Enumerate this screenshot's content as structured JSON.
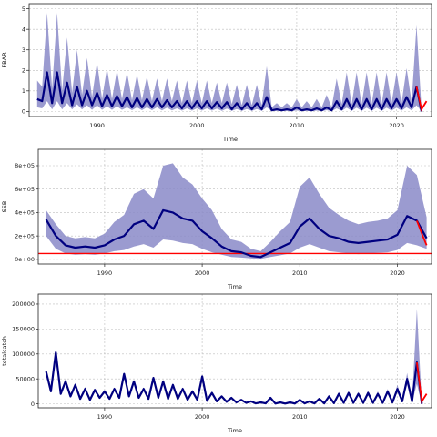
{
  "chart_data": [
    {
      "type": "line",
      "title": "",
      "xlabel": "Time",
      "ylabel": "FBAR",
      "xlim": [
        1983.2,
        2023.5
      ],
      "ylim": [
        -0.25,
        5.25
      ],
      "xticks": [
        "1990",
        "2000",
        "2010",
        "2020"
      ],
      "yticks": [
        "0",
        "1",
        "2",
        "3",
        "4",
        "5"
      ],
      "ytick_values": [
        0,
        1,
        2,
        3,
        4,
        5
      ],
      "grid": true,
      "series": [
        {
          "name": "",
          "role": "median",
          "color": "#000080",
          "x": [
            1984.0,
            1984.5,
            1985.0,
            1985.5,
            1986.0,
            1986.5,
            1987.0,
            1987.5,
            1988.0,
            1988.5,
            1989.0,
            1989.5,
            1990.0,
            1990.5,
            1991.0,
            1991.5,
            1992.0,
            1992.5,
            1993.0,
            1993.5,
            1994.0,
            1994.5,
            1995.0,
            1995.5,
            1996.0,
            1996.5,
            1997.0,
            1997.5,
            1998.0,
            1998.5,
            1999.0,
            1999.5,
            2000.0,
            2000.5,
            2001.0,
            2001.5,
            2002.0,
            2002.5,
            2003.0,
            2003.5,
            2004.0,
            2004.5,
            2005.0,
            2005.5,
            2006.0,
            2006.5,
            2007.0,
            2007.5,
            2008.0,
            2008.5,
            2009.0,
            2009.5,
            2010.0,
            2010.5,
            2011.0,
            2011.5,
            2012.0,
            2012.5,
            2013.0,
            2013.5,
            2014.0,
            2014.5,
            2015.0,
            2015.5,
            2016.0,
            2016.5,
            2017.0,
            2017.5,
            2018.0,
            2018.5,
            2019.0,
            2019.5,
            2020.0,
            2020.5,
            2021.0,
            2021.5,
            2022.0,
            2022.5
          ],
          "values": [
            0.6,
            0.5,
            1.9,
            0.4,
            1.9,
            0.4,
            1.4,
            0.3,
            1.2,
            0.3,
            1.0,
            0.3,
            0.9,
            0.25,
            0.8,
            0.25,
            0.75,
            0.25,
            0.7,
            0.2,
            0.65,
            0.2,
            0.6,
            0.2,
            0.6,
            0.2,
            0.55,
            0.2,
            0.5,
            0.15,
            0.5,
            0.15,
            0.5,
            0.15,
            0.5,
            0.15,
            0.45,
            0.15,
            0.45,
            0.1,
            0.4,
            0.1,
            0.4,
            0.1,
            0.4,
            0.1,
            0.7,
            0.05,
            0.1,
            0.05,
            0.1,
            0.05,
            0.2,
            0.05,
            0.1,
            0.05,
            0.15,
            0.05,
            0.2,
            0.05,
            0.5,
            0.1,
            0.6,
            0.1,
            0.6,
            0.1,
            0.6,
            0.1,
            0.6,
            0.1,
            0.6,
            0.15,
            0.6,
            0.15,
            0.7,
            0.2,
            1.2,
            0.0
          ]
        },
        {
          "name": "",
          "role": "upper",
          "color": "#8a8ac8",
          "values": [
            1.5,
            1.2,
            4.8,
            1.1,
            4.8,
            1.0,
            3.6,
            0.9,
            3.0,
            0.8,
            2.6,
            0.7,
            2.4,
            0.6,
            2.1,
            0.6,
            2.0,
            0.6,
            1.9,
            0.55,
            1.8,
            0.55,
            1.7,
            0.5,
            1.6,
            0.5,
            1.6,
            0.5,
            1.5,
            0.4,
            1.5,
            0.4,
            1.5,
            0.4,
            1.5,
            0.4,
            1.4,
            0.4,
            1.4,
            0.35,
            1.3,
            0.3,
            1.3,
            0.3,
            1.3,
            0.3,
            2.2,
            0.2,
            0.4,
            0.2,
            0.4,
            0.2,
            0.6,
            0.2,
            0.5,
            0.2,
            0.6,
            0.2,
            0.8,
            0.2,
            1.6,
            0.35,
            1.9,
            0.35,
            1.9,
            0.35,
            1.9,
            0.35,
            1.9,
            0.35,
            1.9,
            0.4,
            1.9,
            0.4,
            2.1,
            0.45,
            4.2,
            0.1
          ]
        },
        {
          "name": "",
          "role": "lower",
          "color": "#8a8ac8",
          "values": [
            0.2,
            0.15,
            0.5,
            0.1,
            0.5,
            0.1,
            0.4,
            0.1,
            0.35,
            0.1,
            0.3,
            0.08,
            0.3,
            0.08,
            0.25,
            0.08,
            0.25,
            0.08,
            0.2,
            0.06,
            0.2,
            0.06,
            0.2,
            0.06,
            0.2,
            0.05,
            0.18,
            0.05,
            0.15,
            0.04,
            0.15,
            0.04,
            0.15,
            0.04,
            0.15,
            0.04,
            0.14,
            0.03,
            0.14,
            0.03,
            0.12,
            0.03,
            0.12,
            0.03,
            0.12,
            0.03,
            0.2,
            0.01,
            0.03,
            0.01,
            0.03,
            0.01,
            0.05,
            0.01,
            0.03,
            0.01,
            0.04,
            0.01,
            0.06,
            0.01,
            0.15,
            0.03,
            0.18,
            0.03,
            0.18,
            0.03,
            0.18,
            0.03,
            0.18,
            0.03,
            0.18,
            0.04,
            0.18,
            0.04,
            0.2,
            0.05,
            0.3,
            0.0
          ]
        },
        {
          "name": "",
          "role": "projection",
          "color": "#ff0000",
          "x": [
            2022.0,
            2022.5,
            2023.0
          ],
          "values": [
            1.2,
            0.1,
            0.5
          ]
        }
      ]
    },
    {
      "type": "line",
      "title": "",
      "xlabel": "Time",
      "ylabel": "SSB",
      "xlim": [
        1983.2,
        2023.5
      ],
      "ylim": [
        -40000,
        940000
      ],
      "xticks": [
        "1990",
        "2000",
        "2010",
        "2020"
      ],
      "yticks": [
        "0e+00",
        "2e+05",
        "4e+05",
        "6e+05",
        "8e+05"
      ],
      "ytick_values": [
        0,
        200000,
        400000,
        600000,
        800000
      ],
      "grid": true,
      "reference_line": {
        "y": 50000,
        "color": "#ff0000"
      },
      "series": [
        {
          "name": "",
          "role": "median",
          "color": "#000080",
          "x": [
            1984.0,
            1985.0,
            1986.0,
            1987.0,
            1988.0,
            1989.0,
            1990.0,
            1991.0,
            1992.0,
            1993.0,
            1994.0,
            1995.0,
            1996.0,
            1997.0,
            1998.0,
            1999.0,
            2000.0,
            2001.0,
            2002.0,
            2003.0,
            2004.0,
            2005.0,
            2006.0,
            2007.0,
            2008.0,
            2009.0,
            2010.0,
            2011.0,
            2012.0,
            2013.0,
            2014.0,
            2015.0,
            2016.0,
            2017.0,
            2018.0,
            2019.0,
            2020.0,
            2021.0,
            2022.0,
            2023.0
          ],
          "values": [
            340000,
            200000,
            120000,
            100000,
            110000,
            100000,
            120000,
            170000,
            200000,
            300000,
            330000,
            260000,
            420000,
            400000,
            350000,
            330000,
            240000,
            180000,
            110000,
            70000,
            60000,
            30000,
            20000,
            60000,
            100000,
            140000,
            280000,
            350000,
            260000,
            200000,
            180000,
            150000,
            140000,
            150000,
            160000,
            170000,
            210000,
            370000,
            330000,
            180000
          ]
        },
        {
          "name": "",
          "role": "upper",
          "color": "#8a8ac8",
          "values": [
            420000,
            300000,
            200000,
            180000,
            190000,
            180000,
            220000,
            320000,
            380000,
            560000,
            600000,
            520000,
            800000,
            820000,
            700000,
            640000,
            520000,
            420000,
            260000,
            170000,
            150000,
            90000,
            70000,
            150000,
            240000,
            320000,
            620000,
            700000,
            560000,
            440000,
            380000,
            330000,
            300000,
            320000,
            330000,
            350000,
            420000,
            800000,
            720000,
            360000
          ]
        },
        {
          "name": "",
          "role": "lower",
          "color": "#8a8ac8",
          "values": [
            200000,
            90000,
            50000,
            40000,
            45000,
            40000,
            50000,
            70000,
            80000,
            110000,
            130000,
            100000,
            170000,
            160000,
            140000,
            130000,
            90000,
            60000,
            40000,
            20000,
            15000,
            8000,
            5000,
            20000,
            35000,
            50000,
            100000,
            130000,
            100000,
            70000,
            60000,
            50000,
            45000,
            50000,
            55000,
            60000,
            80000,
            140000,
            120000,
            90000
          ]
        },
        {
          "name": "",
          "role": "projection",
          "color": "#ff0000",
          "x": [
            2022.0,
            2022.5,
            2023.0
          ],
          "values": [
            330000,
            220000,
            120000
          ]
        }
      ]
    },
    {
      "type": "line",
      "title": "",
      "xlabel": "Time",
      "ylabel": "totalcatch",
      "xlim": [
        1983.2,
        2023.5
      ],
      "ylim": [
        -8000,
        220000
      ],
      "xticks": [
        "1990",
        "2000",
        "2010",
        "2020"
      ],
      "yticks": [
        "0",
        "50000",
        "100000",
        "150000",
        "200000"
      ],
      "ytick_values": [
        0,
        50000,
        100000,
        150000,
        200000
      ],
      "grid": true,
      "series": [
        {
          "name": "",
          "role": "median",
          "color": "#000080",
          "x": [
            1984.0,
            1984.5,
            1985.0,
            1985.5,
            1986.0,
            1986.5,
            1987.0,
            1987.5,
            1988.0,
            1988.5,
            1989.0,
            1989.5,
            1990.0,
            1990.5,
            1991.0,
            1991.5,
            1992.0,
            1992.5,
            1993.0,
            1993.5,
            1994.0,
            1994.5,
            1995.0,
            1995.5,
            1996.0,
            1996.5,
            1997.0,
            1997.5,
            1998.0,
            1998.5,
            1999.0,
            1999.5,
            2000.0,
            2000.5,
            2001.0,
            2001.5,
            2002.0,
            2002.5,
            2003.0,
            2003.5,
            2004.0,
            2004.5,
            2005.0,
            2005.5,
            2006.0,
            2006.5,
            2007.0,
            2007.5,
            2008.0,
            2008.5,
            2009.0,
            2009.5,
            2010.0,
            2010.5,
            2011.0,
            2011.5,
            2012.0,
            2012.5,
            2013.0,
            2013.5,
            2014.0,
            2014.5,
            2015.0,
            2015.5,
            2016.0,
            2016.5,
            2017.0,
            2017.5,
            2018.0,
            2018.5,
            2019.0,
            2019.5,
            2020.0,
            2020.5,
            2021.0,
            2021.5,
            2022.0,
            2022.5
          ],
          "values": [
            65000,
            25000,
            103000,
            20000,
            45000,
            15000,
            38000,
            10000,
            30000,
            8000,
            28000,
            12000,
            25000,
            10000,
            30000,
            12000,
            60000,
            15000,
            45000,
            12000,
            30000,
            10000,
            52000,
            12000,
            45000,
            10000,
            38000,
            10000,
            30000,
            8000,
            25000,
            8000,
            55000,
            6000,
            22000,
            5000,
            15000,
            4000,
            12000,
            3000,
            8000,
            2000,
            5000,
            1000,
            3000,
            1000,
            12000,
            500,
            3000,
            500,
            3000,
            500,
            8000,
            1000,
            5000,
            1000,
            10000,
            1000,
            15000,
            1500,
            20000,
            2000,
            22000,
            2000,
            20000,
            2000,
            22000,
            2000,
            20000,
            2000,
            25000,
            3000,
            30000,
            5000,
            50000,
            5000,
            83000,
            0
          ]
        },
        {
          "name": "",
          "role": "upper",
          "color": "#8a8ac8",
          "values": [
            70000,
            30000,
            108000,
            25000,
            50000,
            18000,
            42000,
            13000,
            34000,
            10000,
            31000,
            14000,
            28000,
            12000,
            33000,
            14000,
            63000,
            17000,
            48000,
            14000,
            33000,
            12000,
            55000,
            14000,
            48000,
            12000,
            41000,
            12000,
            33000,
            10000,
            28000,
            10000,
            58000,
            8000,
            25000,
            7000,
            17000,
            6000,
            14000,
            4000,
            10000,
            3000,
            6000,
            2000,
            4000,
            2000,
            14000,
            1000,
            4000,
            1000,
            4000,
            1000,
            10000,
            2000,
            7000,
            2000,
            12000,
            2000,
            18000,
            2500,
            24000,
            3000,
            26000,
            3000,
            24000,
            3000,
            27000,
            3000,
            25000,
            3000,
            30000,
            4000,
            38000,
            7000,
            62000,
            7000,
            190000,
            2000
          ]
        },
        {
          "name": "",
          "role": "lower",
          "color": "#8a8ac8",
          "values": [
            60000,
            22000,
            98000,
            17000,
            41000,
            12000,
            34000,
            8000,
            27000,
            6000,
            25000,
            10000,
            22000,
            8000,
            27000,
            10000,
            57000,
            13000,
            42000,
            10000,
            27000,
            8000,
            49000,
            10000,
            42000,
            8000,
            35000,
            8000,
            27000,
            6000,
            22000,
            6000,
            52000,
            4000,
            19000,
            3000,
            13000,
            2000,
            10000,
            2000,
            6000,
            1000,
            4000,
            500,
            2000,
            500,
            10000,
            0,
            2000,
            0,
            2000,
            0,
            6000,
            500,
            3000,
            500,
            8000,
            500,
            12000,
            1000,
            16000,
            1000,
            18000,
            1000,
            16000,
            1000,
            18000,
            1000,
            16000,
            1000,
            20000,
            2000,
            23000,
            3000,
            38000,
            3000,
            40000,
            0
          ]
        },
        {
          "name": "",
          "role": "projection",
          "color": "#ff0000",
          "x": [
            2022.0,
            2022.5,
            2023.0
          ],
          "values": [
            83000,
            5000,
            20000
          ]
        }
      ]
    }
  ]
}
